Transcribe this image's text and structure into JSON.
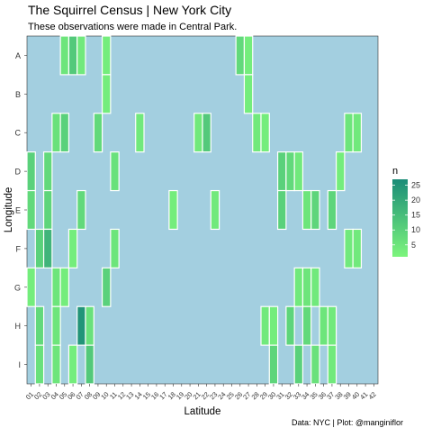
{
  "chart_data": {
    "type": "heatmap",
    "title": "The Squirrel Census | New York City",
    "subtitle": "These observations were made in Central Park.",
    "caption": "Data: NYC | Plot: @manginiflor",
    "xlabel": "Latitude",
    "ylabel": "Longitude",
    "x_categories": [
      "01",
      "02",
      "03",
      "04",
      "05",
      "06",
      "07",
      "08",
      "09",
      "10",
      "11",
      "12",
      "13",
      "14",
      "15",
      "16",
      "17",
      "18",
      "19",
      "20",
      "21",
      "22",
      "23",
      "24",
      "25",
      "26",
      "27",
      "28",
      "29",
      "30",
      "31",
      "32",
      "33",
      "34",
      "35",
      "36",
      "37",
      "38",
      "39",
      "40",
      "41",
      "42"
    ],
    "y_categories": [
      "A",
      "B",
      "C",
      "D",
      "E",
      "F",
      "G",
      "H",
      "I"
    ],
    "legend": {
      "title": "n",
      "breaks": [
        5,
        10,
        15,
        20,
        25
      ],
      "range": [
        1,
        27
      ],
      "position": "right"
    },
    "colors": {
      "panel": "#a3cfe0",
      "low": "#7cf57c",
      "high": "#1a8c78",
      "cell_border": "#ffffff"
    },
    "cells": [
      {
        "y": "A",
        "x": "05",
        "n": 5
      },
      {
        "y": "A",
        "x": "06",
        "n": 12
      },
      {
        "y": "A",
        "x": "07",
        "n": 4
      },
      {
        "y": "A",
        "x": "10",
        "n": 3
      },
      {
        "y": "A",
        "x": "26",
        "n": 8
      },
      {
        "y": "A",
        "x": "27",
        "n": 3
      },
      {
        "y": "B",
        "x": "10",
        "n": 3
      },
      {
        "y": "B",
        "x": "27",
        "n": 3
      },
      {
        "y": "C",
        "x": "04",
        "n": 6
      },
      {
        "y": "C",
        "x": "05",
        "n": 10
      },
      {
        "y": "C",
        "x": "09",
        "n": 8
      },
      {
        "y": "C",
        "x": "14",
        "n": 4
      },
      {
        "y": "C",
        "x": "21",
        "n": 4
      },
      {
        "y": "C",
        "x": "22",
        "n": 12
      },
      {
        "y": "C",
        "x": "28",
        "n": 4
      },
      {
        "y": "C",
        "x": "29",
        "n": 3
      },
      {
        "y": "C",
        "x": "39",
        "n": 5
      },
      {
        "y": "C",
        "x": "40",
        "n": 4
      },
      {
        "y": "D",
        "x": "01",
        "n": 10
      },
      {
        "y": "D",
        "x": "03",
        "n": 8
      },
      {
        "y": "D",
        "x": "11",
        "n": 6
      },
      {
        "y": "D",
        "x": "31",
        "n": 10
      },
      {
        "y": "D",
        "x": "32",
        "n": 8
      },
      {
        "y": "D",
        "x": "33",
        "n": 4
      },
      {
        "y": "D",
        "x": "38",
        "n": 3
      },
      {
        "y": "E",
        "x": "01",
        "n": 8
      },
      {
        "y": "E",
        "x": "03",
        "n": 9
      },
      {
        "y": "E",
        "x": "07",
        "n": 8
      },
      {
        "y": "E",
        "x": "18",
        "n": 3
      },
      {
        "y": "E",
        "x": "23",
        "n": 4
      },
      {
        "y": "E",
        "x": "31",
        "n": 10
      },
      {
        "y": "E",
        "x": "34",
        "n": 5
      },
      {
        "y": "E",
        "x": "35",
        "n": 9
      },
      {
        "y": "E",
        "x": "37",
        "n": 9
      },
      {
        "y": "F",
        "x": "02",
        "n": 10
      },
      {
        "y": "F",
        "x": "03",
        "n": 17
      },
      {
        "y": "F",
        "x": "06",
        "n": 3
      },
      {
        "y": "F",
        "x": "11",
        "n": 5
      },
      {
        "y": "F",
        "x": "39",
        "n": 4
      },
      {
        "y": "F",
        "x": "40",
        "n": 4
      },
      {
        "y": "G",
        "x": "01",
        "n": 3
      },
      {
        "y": "G",
        "x": "04",
        "n": 5
      },
      {
        "y": "G",
        "x": "05",
        "n": 3
      },
      {
        "y": "G",
        "x": "10",
        "n": 10
      },
      {
        "y": "G",
        "x": "33",
        "n": 4
      },
      {
        "y": "G",
        "x": "34",
        "n": 5
      },
      {
        "y": "G",
        "x": "35",
        "n": 4
      },
      {
        "y": "H",
        "x": "02",
        "n": 8
      },
      {
        "y": "H",
        "x": "04",
        "n": 5
      },
      {
        "y": "H",
        "x": "07",
        "n": 25
      },
      {
        "y": "H",
        "x": "08",
        "n": 6
      },
      {
        "y": "H",
        "x": "29",
        "n": 4
      },
      {
        "y": "H",
        "x": "30",
        "n": 3
      },
      {
        "y": "H",
        "x": "32",
        "n": 9
      },
      {
        "y": "H",
        "x": "34",
        "n": 8
      },
      {
        "y": "H",
        "x": "36",
        "n": 5
      },
      {
        "y": "H",
        "x": "37",
        "n": 4
      },
      {
        "y": "I",
        "x": "02",
        "n": 6
      },
      {
        "y": "I",
        "x": "04",
        "n": 5
      },
      {
        "y": "I",
        "x": "06",
        "n": 3
      },
      {
        "y": "I",
        "x": "08",
        "n": 12
      },
      {
        "y": "I",
        "x": "30",
        "n": 9
      },
      {
        "y": "I",
        "x": "33",
        "n": 10
      },
      {
        "y": "I",
        "x": "35",
        "n": 6
      },
      {
        "y": "I",
        "x": "37",
        "n": 4
      }
    ]
  }
}
